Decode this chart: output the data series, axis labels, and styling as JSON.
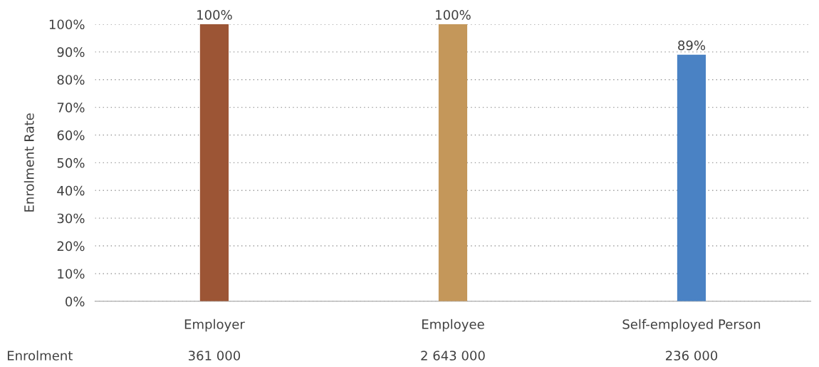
{
  "chart_data": {
    "type": "bar",
    "ylabel": "Enrolment Rate",
    "categories": [
      "Employer",
      "Employee",
      "Self-employed Person"
    ],
    "values": [
      100,
      100,
      89
    ],
    "colors": [
      "#9c5535",
      "#c4975a",
      "#4a82c4"
    ],
    "value_labels": [
      "100%",
      "100%",
      "89%"
    ],
    "ylim": [
      0,
      100
    ],
    "yticks": [
      {
        "value": 0,
        "label": "0%"
      },
      {
        "value": 10,
        "label": "10%"
      },
      {
        "value": 20,
        "label": "20%"
      },
      {
        "value": 30,
        "label": "30%"
      },
      {
        "value": 40,
        "label": "40%"
      },
      {
        "value": 50,
        "label": "50%"
      },
      {
        "value": 60,
        "label": "60%"
      },
      {
        "value": 70,
        "label": "70%"
      },
      {
        "value": 80,
        "label": "80%"
      },
      {
        "value": 90,
        "label": "90%"
      },
      {
        "value": 100,
        "label": "100%"
      }
    ],
    "grid": "y",
    "annotations": [
      "Enrolment",
      "361 000",
      "2 643 000",
      "236 000"
    ]
  }
}
